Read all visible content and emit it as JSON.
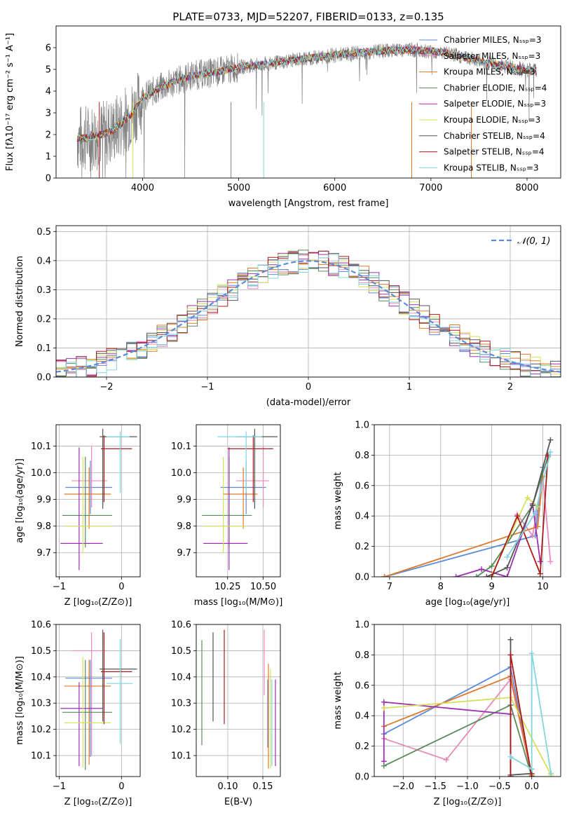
{
  "colors": {
    "Chabrier MILES": "#5b8bd9",
    "Salpeter MILES": "#e889b8",
    "Kroupa MILES": "#dd7a2a",
    "Chabrier ELODIE": "#5a8a5a",
    "Salpeter ELODIE": "#9b30b0",
    "Kroupa ELODIE": "#d5e05a",
    "Chabrier STELIB": "#555555",
    "Salpeter STELIB": "#aa1a1a",
    "Kroupa STELIB": "#7fd6dd",
    "data": "#808080",
    "normal": "#5b8bd9"
  },
  "chart_data": [
    {
      "id": "spectrum",
      "type": "line",
      "title": "PLATE=0733, MJD=52207, FIBERID=0133, z=0.135",
      "xlabel": "wavelength [Angstrom, rest frame]",
      "ylabel": "Flux [fλ10⁻¹⁷ erg cm⁻² s⁻¹ A⁻¹]",
      "xlim": [
        3100,
        8350
      ],
      "ylim": [
        0,
        7
      ],
      "xticks": [
        "4000",
        "5000",
        "6000",
        "7000",
        "8000"
      ],
      "yticks": [
        "0",
        "1",
        "2",
        "3",
        "4",
        "5",
        "6"
      ],
      "legend": [
        "Chabrier MILES, Nₛₛₚ=3",
        "Salpeter MILES, Nₛₛₚ=3",
        "Kroupa MILES, Nₛₛₚ=3",
        "Chabrier ELODIE, Nₛₛₚ=4",
        "Salpeter ELODIE, Nₛₛₚ=3",
        "Kroupa ELODIE, Nₛₛₚ=3",
        "Chabrier STELIB, Nₛₛₚ=4",
        "Salpeter STELIB, Nₛₛₚ=4",
        "Kroupa STELIB, Nₛₛₚ=3"
      ],
      "legend_placement": "right",
      "continuum_x": [
        3320,
        3500,
        3700,
        3900,
        4000,
        4200,
        4500,
        4800,
        5000,
        5300,
        5600,
        5900,
        6200,
        6500,
        6800,
        7100,
        7400,
        7700,
        7900,
        8050
      ],
      "continuum_y": [
        1.8,
        1.9,
        2.2,
        3.0,
        3.7,
        4.2,
        4.7,
        4.9,
        5.1,
        5.25,
        5.45,
        5.6,
        5.75,
        5.85,
        5.9,
        5.8,
        5.5,
        5.2,
        5.05,
        4.95
      ],
      "data_range": [
        3320,
        8100
      ],
      "grid": false
    },
    {
      "id": "residuals",
      "type": "histogram",
      "xlabel": "(data-model)/error",
      "ylabel": "Normed distribution",
      "xlim": [
        -2.5,
        2.5
      ],
      "ylim": [
        0,
        0.52
      ],
      "xticks": [
        "−2",
        "−1",
        "0",
        "1",
        "2"
      ],
      "yticks": [
        "0.0",
        "0.1",
        "0.2",
        "0.3",
        "0.4",
        "0.5"
      ],
      "legend": [
        "𝒩(0, 1)"
      ],
      "legend_placement": "upper right",
      "bin_width": 0.1,
      "grid": true
    },
    {
      "id": "age_vs_Z",
      "type": "errorbar",
      "xlabel": "Z [log₁₀(Z/Z⊙)]",
      "ylabel": "age  [log₁₀(age/yr)]",
      "xlim": [
        -1.05,
        0.3
      ],
      "ylim": [
        9.61,
        10.18
      ],
      "xticks": [
        "−1",
        "0"
      ],
      "yticks": [
        "9.7",
        "9.8",
        "9.9",
        "10.0",
        "10.1"
      ],
      "points": [
        {
          "model": "Chabrier MILES",
          "x": -0.5,
          "xerr": [
            0.4,
            0.35
          ],
          "y": 9.945,
          "yerr": [
            0.1,
            0.1
          ]
        },
        {
          "model": "Salpeter MILES",
          "x": -0.48,
          "xerr": [
            0.32,
            0.25
          ],
          "y": 9.97,
          "yerr": [
            0.1,
            0.13
          ]
        },
        {
          "model": "Kroupa MILES",
          "x": -0.52,
          "xerr": [
            0.4,
            0.35
          ],
          "y": 9.92,
          "yerr": [
            0.13,
            0.1
          ]
        },
        {
          "model": "Chabrier ELODIE",
          "x": -0.58,
          "xerr": [
            0.37,
            0.43
          ],
          "y": 9.84,
          "yerr": [
            0.12,
            0.22
          ]
        },
        {
          "model": "Salpeter ELODIE",
          "x": -0.68,
          "xerr": [
            0.3,
            0.38
          ],
          "y": 9.735,
          "yerr": [
            0.1,
            0.36
          ]
        },
        {
          "model": "Kroupa ELODIE",
          "x": -0.62,
          "xerr": [
            0.3,
            0.45
          ],
          "y": 9.8,
          "yerr": [
            0.1,
            0.26
          ]
        },
        {
          "model": "Chabrier STELIB",
          "x": -0.3,
          "xerr": [
            0.05,
            0.55
          ],
          "y": 10.135,
          "yerr": [
            0.27,
            0.03
          ]
        },
        {
          "model": "Salpeter STELIB",
          "x": -0.28,
          "xerr": [
            0.05,
            0.45
          ],
          "y": 10.09,
          "yerr": [
            0.2,
            0.05
          ]
        },
        {
          "model": "Kroupa STELIB",
          "x": -0.02,
          "xerr": [
            0.22,
            0.15
          ],
          "y": 10.135,
          "yerr": [
            0.21,
            0.02
          ]
        }
      ],
      "grid": true
    },
    {
      "id": "age_vs_mass",
      "type": "errorbar",
      "xlabel": "mass [log₁₀(M/M⊙)]",
      "ylabel": "",
      "xlim": [
        10.03,
        10.62
      ],
      "ylim": [
        9.61,
        10.18
      ],
      "xticks": [
        "10.25",
        "10.50"
      ],
      "yticks": [
        "9.7",
        "9.8",
        "9.9",
        "10.0",
        "10.1"
      ],
      "points": [
        {
          "model": "Chabrier MILES",
          "x": 10.38,
          "xerr": [
            0.18,
            0.14
          ],
          "y": 9.945,
          "yerr": [
            0.1,
            0.1
          ]
        },
        {
          "model": "Salpeter MILES",
          "x": 10.5,
          "xerr": [
            0.19,
            0.04
          ],
          "y": 9.97,
          "yerr": [
            0.1,
            0.13
          ]
        },
        {
          "model": "Kroupa MILES",
          "x": 10.36,
          "xerr": [
            0.14,
            0.1
          ],
          "y": 9.92,
          "yerr": [
            0.13,
            0.1
          ]
        },
        {
          "model": "Chabrier ELODIE",
          "x": 10.26,
          "xerr": [
            0.19,
            0.16
          ],
          "y": 9.84,
          "yerr": [
            0.12,
            0.22
          ]
        },
        {
          "model": "Salpeter ELODIE",
          "x": 10.26,
          "xerr": [
            0.18,
            0.13
          ],
          "y": 9.735,
          "yerr": [
            0.1,
            0.36
          ]
        },
        {
          "model": "Kroupa ELODIE",
          "x": 10.22,
          "xerr": [
            0.14,
            0.16
          ],
          "y": 9.8,
          "yerr": [
            0.1,
            0.26
          ]
        },
        {
          "model": "Chabrier STELIB",
          "x": 10.44,
          "xerr": [
            0.13,
            0.16
          ],
          "y": 10.135,
          "yerr": [
            0.27,
            0.03
          ]
        },
        {
          "model": "Salpeter STELIB",
          "x": 10.43,
          "xerr": [
            0.18,
            0.14
          ],
          "y": 10.09,
          "yerr": [
            0.2,
            0.05
          ]
        },
        {
          "model": "Kroupa STELIB",
          "x": 10.38,
          "xerr": [
            0.2,
            0.11
          ],
          "y": 10.135,
          "yerr": [
            0.21,
            0.02
          ]
        }
      ],
      "grid": true
    },
    {
      "id": "weight_vs_age",
      "type": "line",
      "xlabel": "age  [log₁₀(age/yr)]",
      "ylabel": "mass weight",
      "xlim": [
        6.7,
        10.35
      ],
      "ylim": [
        0,
        1
      ],
      "xticks": [
        "7",
        "8",
        "9",
        "10"
      ],
      "yticks": [
        "0.0",
        "0.2",
        "0.4",
        "0.6",
        "0.8",
        "1.0"
      ],
      "series": [
        {
          "model": "Chabrier MILES",
          "x": [
            6.9,
            9.85,
            10.0
          ],
          "y": [
            0.0,
            0.27,
            0.72
          ]
        },
        {
          "model": "Salpeter MILES",
          "x": [
            9.5,
            9.8,
            10.0,
            10.15
          ],
          "y": [
            0.41,
            0.27,
            0.66,
            0.1
          ]
        },
        {
          "model": "Kroupa MILES",
          "x": [
            6.9,
            9.9,
            10.0
          ],
          "y": [
            0.0,
            0.33,
            0.66
          ]
        },
        {
          "model": "Chabrier ELODIE",
          "x": [
            8.7,
            9.0,
            9.8,
            10.1
          ],
          "y": [
            0.0,
            0.07,
            0.47,
            0.79
          ]
        },
        {
          "model": "Salpeter ELODIE",
          "x": [
            8.3,
            8.8,
            9.3,
            9.8,
            9.95
          ],
          "y": [
            0.0,
            0.05,
            0.0,
            0.48,
            0.1
          ]
        },
        {
          "model": "Kroupa ELODIE",
          "x": [
            9.0,
            9.7,
            9.9
          ],
          "y": [
            0.01,
            0.52,
            0.46
          ]
        },
        {
          "model": "Chabrier STELIB",
          "x": [
            8.9,
            9.3,
            9.8,
            10.15
          ],
          "y": [
            0.0,
            0.06,
            0.47,
            0.9
          ]
        },
        {
          "model": "Salpeter STELIB",
          "x": [
            9.0,
            9.5,
            9.95,
            10.1
          ],
          "y": [
            0.0,
            0.4,
            0.02,
            0.8
          ]
        },
        {
          "model": "Kroupa STELIB",
          "x": [
            9.3,
            9.85,
            10.15
          ],
          "y": [
            0.13,
            0.42,
            0.82
          ]
        }
      ],
      "grid": true
    },
    {
      "id": "mass_vs_Z",
      "type": "errorbar",
      "xlabel": "Z [log₁₀(Z/Z⊙)]",
      "ylabel": "mass [log₁₀(M/M⊙)]",
      "xlim": [
        -1.05,
        0.3
      ],
      "ylim": [
        10.02,
        10.6
      ],
      "xticks": [
        "−1",
        "0"
      ],
      "yticks": [
        "10.1",
        "10.2",
        "10.3",
        "10.4",
        "10.5",
        "10.6"
      ],
      "points": [
        {
          "model": "Chabrier MILES",
          "x": -0.5,
          "xerr": [
            0.4,
            0.35
          ],
          "y": 10.395,
          "yerr": [
            0.3,
            0.07
          ]
        },
        {
          "model": "Salpeter MILES",
          "x": -0.48,
          "xerr": [
            0.32,
            0.25
          ],
          "y": 10.5,
          "yerr": [
            0.4,
            0.07
          ]
        },
        {
          "model": "Kroupa MILES",
          "x": -0.52,
          "xerr": [
            0.4,
            0.35
          ],
          "y": 10.365,
          "yerr": [
            0.3,
            0.1
          ]
        },
        {
          "model": "Chabrier ELODIE",
          "x": -0.58,
          "xerr": [
            0.37,
            0.43
          ],
          "y": 10.265,
          "yerr": [
            0.22,
            0.2
          ]
        },
        {
          "model": "Salpeter ELODIE",
          "x": -0.68,
          "xerr": [
            0.3,
            0.38
          ],
          "y": 10.28,
          "yerr": [
            0.22,
            0.1
          ]
        },
        {
          "model": "Kroupa ELODIE",
          "x": -0.62,
          "xerr": [
            0.3,
            0.45
          ],
          "y": 10.225,
          "yerr": [
            0.17,
            0.25
          ]
        },
        {
          "model": "Chabrier STELIB",
          "x": -0.3,
          "xerr": [
            0.05,
            0.55
          ],
          "y": 10.43,
          "yerr": [
            0.2,
            0.15
          ]
        },
        {
          "model": "Salpeter STELIB",
          "x": -0.28,
          "xerr": [
            0.05,
            0.45
          ],
          "y": 10.42,
          "yerr": [
            0.2,
            0.15
          ]
        },
        {
          "model": "Kroupa STELIB",
          "x": -0.02,
          "xerr": [
            0.22,
            0.2
          ],
          "y": 10.375,
          "yerr": [
            0.23,
            0.17
          ]
        }
      ],
      "grid": true
    },
    {
      "id": "mass_vs_ebv",
      "type": "errorbar",
      "xlabel": "E(B-V)",
      "ylabel": "",
      "xlim": [
        0.055,
        0.175
      ],
      "ylim": [
        10.02,
        10.6
      ],
      "xticks": [
        "0.10",
        "0.15"
      ],
      "yticks": [
        "10.1",
        "10.2",
        "10.3",
        "10.4",
        "10.5",
        "10.6"
      ],
      "points": [
        {
          "model": "Chabrier MILES",
          "x": 0.157,
          "y": 10.33,
          "yerr": [
            0.2,
            0.06
          ]
        },
        {
          "model": "Salpeter MILES",
          "x": 0.152,
          "y": 10.45,
          "yerr": [
            0.12,
            0.13
          ]
        },
        {
          "model": "Kroupa MILES",
          "x": 0.158,
          "y": 10.35,
          "yerr": [
            0.3,
            0.1
          ]
        },
        {
          "model": "Chabrier ELODIE",
          "x": 0.063,
          "y": 10.34,
          "yerr": [
            0.2,
            0.2
          ]
        },
        {
          "model": "Salpeter ELODIE",
          "x": 0.168,
          "y": 10.22,
          "yerr": [
            0.16,
            0.17
          ]
        },
        {
          "model": "Kroupa ELODIE",
          "x": 0.161,
          "y": 10.23,
          "yerr": [
            0.18,
            0.2
          ]
        },
        {
          "model": "Chabrier STELIB",
          "x": 0.079,
          "y": 10.4,
          "yerr": [
            0.17,
            0.17
          ]
        },
        {
          "model": "Salpeter STELIB",
          "x": 0.095,
          "y": 10.4,
          "yerr": [
            0.18,
            0.18
          ]
        },
        {
          "model": "Kroupa STELIB",
          "x": 0.163,
          "y": 10.22,
          "yerr": [
            0.16,
            0.17
          ]
        }
      ],
      "grid": true
    },
    {
      "id": "weight_vs_Z",
      "type": "line",
      "xlabel": "Z [log₁₀(Z/Z⊙)]",
      "ylabel": "mass weight",
      "xlim": [
        -2.45,
        0.45
      ],
      "ylim": [
        0,
        1
      ],
      "xticks": [
        "−2.0",
        "−1.5",
        "−1.0",
        "−0.5",
        "0.0"
      ],
      "yticks": [
        "0.0",
        "0.2",
        "0.4",
        "0.6",
        "0.8",
        "1.0"
      ],
      "series": [
        {
          "model": "Chabrier MILES",
          "x": [
            -2.3,
            -0.33,
            0.0
          ],
          "y": [
            0.28,
            0.72,
            0.0
          ]
        },
        {
          "model": "Salpeter MILES",
          "x": [
            -2.3,
            -1.33,
            -0.33,
            0.0
          ],
          "y": [
            0.25,
            0.11,
            0.64,
            0.0
          ]
        },
        {
          "model": "Kroupa MILES",
          "x": [
            -2.3,
            -0.33,
            0.0
          ],
          "y": [
            0.33,
            0.66,
            0.01
          ]
        },
        {
          "model": "Chabrier ELODIE",
          "x": [
            -2.3,
            -0.33,
            0.0
          ],
          "y": [
            0.07,
            0.47,
            0.0
          ]
        },
        {
          "model": "Salpeter ELODIE",
          "x": [
            -2.3,
            -2.3,
            -0.33,
            -0.33
          ],
          "y": [
            0.1,
            0.49,
            0.41,
            0.0
          ]
        },
        {
          "model": "Kroupa ELODIE",
          "x": [
            -2.3,
            -0.33,
            0.3
          ],
          "y": [
            0.45,
            0.52,
            0.01
          ]
        },
        {
          "model": "Chabrier STELIB",
          "x": [
            -0.33,
            -0.33,
            0.0,
            0.0
          ],
          "y": [
            0.9,
            0.01,
            0.02,
            0.05
          ]
        },
        {
          "model": "Salpeter STELIB",
          "x": [
            -0.33,
            -0.33,
            0.0
          ],
          "y": [
            0.0,
            0.8,
            0.0
          ]
        },
        {
          "model": "Kroupa STELIB",
          "x": [
            -0.33,
            0.0,
            0.0,
            0.3
          ],
          "y": [
            0.13,
            0.05,
            0.81,
            0.02
          ]
        }
      ],
      "grid": true
    }
  ]
}
